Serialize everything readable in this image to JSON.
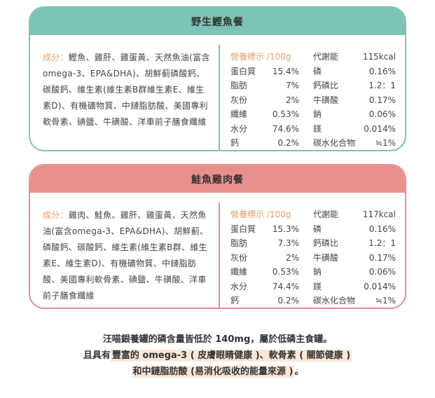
{
  "cards": [
    {
      "title": "野生鰹魚餐",
      "ingredients_label": "成分：",
      "ingredients_text": "鰹魚、雞肝、雞蛋黃、天然魚油(富含omega-3、EPA&DHA)、胡鮮蓟磷酸鈣、碳酸鈣、維生素(維生素B群維生素E、維生素D)、有機礦物質、中鏈脂肪酸、美國專利軟骨素、碘鹽、牛磺酸、洋車前子膳食纖維",
      "nutrition_title": "營養標示 /100g",
      "energy_label": "代謝能",
      "energy_value": "115kcal",
      "rows": [
        {
          "l1": "蛋白質",
          "v1": "15.4%",
          "l2": "磷",
          "v2": "0.16%"
        },
        {
          "l1": "脂肪",
          "v1": "7%",
          "l2": "鈣磷比",
          "v2": "1.2：1"
        },
        {
          "l1": "灰份",
          "v1": "2%",
          "l2": "牛磺酸",
          "v2": "0.17%"
        },
        {
          "l1": "纖維",
          "v1": "0.53%",
          "l2": "鈉",
          "v2": "0.06%"
        },
        {
          "l1": "水分",
          "v1": "74.6%",
          "l2": "鎂",
          "v2": "0.014%"
        },
        {
          "l1": "鈣",
          "v1": "0.2%",
          "l2": "碳水化合物",
          "v2": "≒1%"
        }
      ]
    },
    {
      "title": "鮭魚雞肉餐",
      "ingredients_label": "成分：",
      "ingredients_text": "雞肉、鮭魚、雞肝、雞蛋黃、天然魚油(富含omega-3、EPA&DHA)、胡鮮蓟、磷酸鈣、碳酸鈣、維生素(維生素B群、維生素E、維生素D)、有機礦物質、中鏈脂肪酸、美國專利軟骨素、碘鹽、牛磺酸、洋車前子膳食纖維",
      "nutrition_title": "營養標示 /100g",
      "energy_label": "代謝能",
      "energy_value": "117kcal",
      "rows": [
        {
          "l1": "蛋白質",
          "v1": "15.3%",
          "l2": "磷",
          "v2": "0.16%"
        },
        {
          "l1": "脂肪",
          "v1": "7.3%",
          "l2": "鈣磷比",
          "v2": "1.2：1"
        },
        {
          "l1": "灰份",
          "v1": "2%",
          "l2": "牛磺酸",
          "v2": "0.17%"
        },
        {
          "l1": "纖維",
          "v1": "0.53%",
          "l2": "鈉",
          "v2": "0.06%"
        },
        {
          "l1": "水分",
          "v1": "74.4%",
          "l2": "鎂",
          "v2": "0.014%"
        },
        {
          "l1": "鈣",
          "v1": "0.2%",
          "l2": "碳水化合物",
          "v2": "≒1%"
        }
      ]
    }
  ],
  "footer": {
    "line1": "汪喵銀養罐的磷含量皆低於 140mg，屬於低磷主食罐。",
    "line2_prefix": "且具有",
    "line2_highlight": "豐富的 omega-3 ( 皮膚眼睛健康 )、軟骨素 ( 關節健康 )",
    "line3_highlight": "和中鏈脂肪酸 (易消化吸收的能量來源 )",
    "line3_suffix": "。"
  }
}
